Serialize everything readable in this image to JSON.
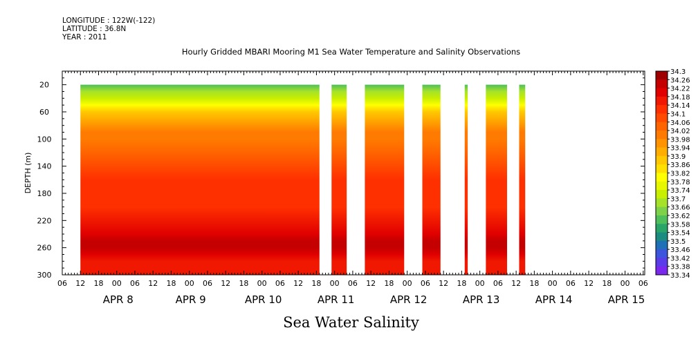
{
  "header": {
    "longitude": "LONGITUDE : 122W(-122)",
    "latitude": "LATITUDE : 36.8N",
    "year": "YEAR : 2011"
  },
  "footer": {
    "variable": "Sea Water Salinity"
  },
  "chart_data": {
    "type": "heatmap",
    "title": "Hourly Gridded MBARI Mooring M1 Sea Water Temperature and Salinity Observations",
    "ylabel": "DEPTH (m)",
    "xlabel": "",
    "ylim": [
      300,
      0
    ],
    "yticks": [
      20,
      60,
      100,
      140,
      180,
      220,
      260,
      300
    ],
    "x_hour_labels": [
      "06",
      "12",
      "18",
      "00",
      "06",
      "12",
      "18",
      "00",
      "06",
      "12",
      "18",
      "00",
      "06",
      "12",
      "18",
      "00",
      "06",
      "12",
      "18",
      "00",
      "06",
      "12",
      "18",
      "00",
      "06",
      "12",
      "18",
      "00",
      "06",
      "12",
      "18",
      "00",
      "06"
    ],
    "day_labels": [
      "APR  8",
      "APR  9",
      "APR 10",
      "APR 11",
      "APR 12",
      "APR 13",
      "APR 14",
      "APR 15"
    ],
    "x_range_hours": [
      "2011-04-08T06:00",
      "2011-04-16T06:30"
    ],
    "colorbar": {
      "levels": [
        "34.3",
        "34.26",
        "34.22",
        "34.18",
        "34.14",
        "34.1",
        "34.06",
        "34.02",
        "33.98",
        "33.94",
        "33.9",
        "33.86",
        "33.82",
        "33.78",
        "33.74",
        "33.7",
        "33.66",
        "33.62",
        "33.58",
        "33.54",
        "33.5",
        "33.46",
        "33.42",
        "33.38",
        "33.34"
      ],
      "min": 33.34,
      "max": 34.3
    },
    "data_segments": [
      {
        "start": "2011-04-08T12:00",
        "end": "2011-04-11T19:00"
      },
      {
        "start": "2011-04-11T23:00",
        "end": "2011-04-12T04:00"
      },
      {
        "start": "2011-04-12T10:00",
        "end": "2011-04-12T23:00"
      },
      {
        "start": "2011-04-13T05:00",
        "end": "2011-04-13T11:00"
      },
      {
        "start": "2011-04-13T19:00",
        "end": "2011-04-13T20:00"
      },
      {
        "start": "2011-04-14T02:00",
        "end": "2011-04-14T09:00"
      },
      {
        "start": "2011-04-14T13:00",
        "end": "2011-04-14T15:00"
      }
    ],
    "profile": {
      "depth": [
        20,
        30,
        40,
        50,
        60,
        70,
        80,
        90,
        100,
        120,
        140,
        160,
        180,
        200,
        220,
        240,
        250,
        260,
        270,
        280,
        300
      ],
      "salinity": [
        33.6,
        33.68,
        33.76,
        33.82,
        33.88,
        33.93,
        33.98,
        34.01,
        34.04,
        34.08,
        34.12,
        34.14,
        34.15,
        34.16,
        34.18,
        34.22,
        34.26,
        34.25,
        34.21,
        34.19,
        34.18
      ]
    },
    "min_depth_m": 20
  }
}
